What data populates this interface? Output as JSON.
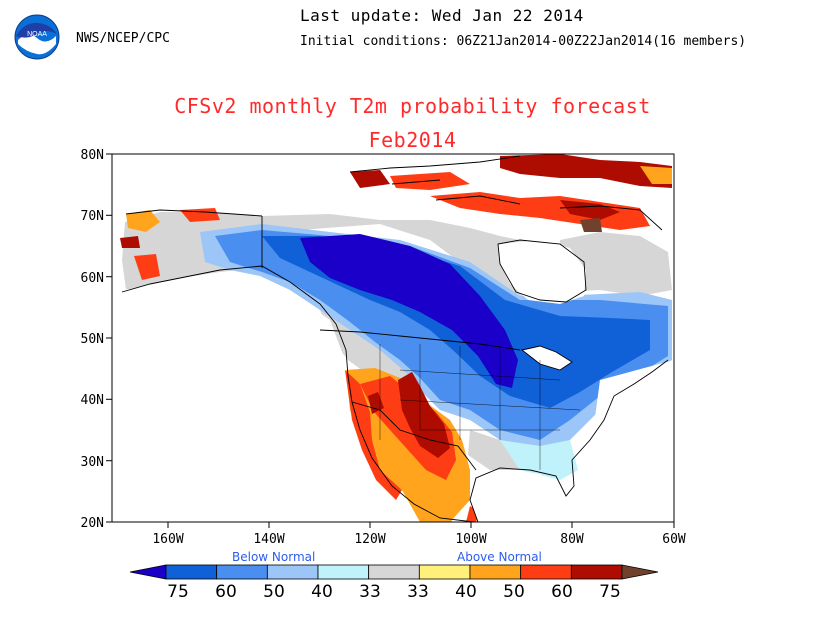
{
  "header": {
    "org": "NWS/NCEP/CPC",
    "last_update": "Last update: Wed Jan 22 2014",
    "initial_conditions": "Initial conditions: 06Z21Jan2014-00Z22Jan2014(16 members)",
    "logo_text": "NOAA"
  },
  "title": {
    "line1": "CFSv2 monthly T2m probability forecast",
    "line2": "Feb2014"
  },
  "axes": {
    "lat_labels": [
      "80N",
      "70N",
      "60N",
      "50N",
      "40N",
      "30N",
      "20N"
    ],
    "lon_labels": [
      "160W",
      "140W",
      "120W",
      "100W",
      "80W",
      "60W"
    ]
  },
  "legend": {
    "below_label": "Below Normal",
    "above_label": "Above Normal",
    "categories": [
      "75",
      "60",
      "50",
      "40",
      "33",
      "33",
      "40",
      "50",
      "60",
      "75"
    ],
    "colors": [
      "#1a00c8",
      "#1060d8",
      "#4a8ef0",
      "#9cc6f8",
      "#bff2fb",
      "#d6d6d6",
      "#fff07c",
      "#ffa41c",
      "#ff3d14",
      "#ae0c00",
      "#70422e"
    ],
    "color_roles": {
      "below_75": "#1a00c8",
      "below_60": "#1060d8",
      "below_50": "#4a8ef0",
      "below_40": "#9cc6f8",
      "below_33": "#bff2fb",
      "normal": "#d6d6d6",
      "above_33": "#fff07c",
      "above_40": "#ffa41c",
      "above_50": "#ff3d14",
      "above_60": "#ae0c00",
      "above_75": "#70422e"
    }
  }
}
